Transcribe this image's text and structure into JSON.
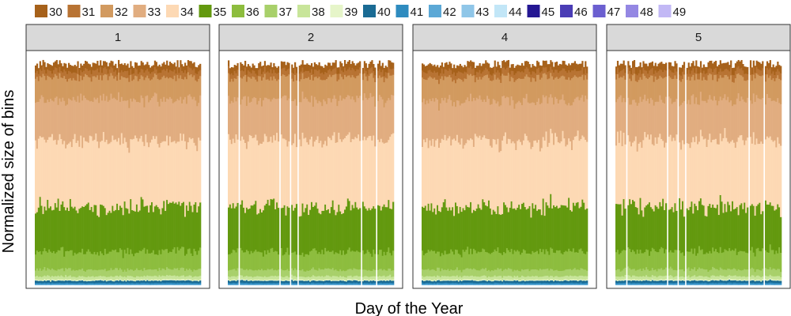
{
  "chart_data": {
    "type": "area",
    "xlabel": "Day of the Year",
    "ylabel": "Normalized size of bins",
    "ylim": [
      0,
      1
    ],
    "grid": false,
    "legend_position": "top",
    "x_axis_ticks": "none",
    "y_axis_ticks": "none",
    "panels": [
      "1",
      "2",
      "4",
      "5"
    ],
    "days_per_panel": 110,
    "missing_days": {
      "1": [],
      "2": [
        7,
        34,
        41,
        46,
        88,
        98
      ],
      "4": [],
      "5": [
        7,
        34,
        41,
        46,
        88,
        98
      ]
    },
    "series": [
      {
        "name": "30",
        "color": "#a6611a",
        "share": 0.03
      },
      {
        "name": "31",
        "color": "#b87333",
        "share": 0.03
      },
      {
        "name": "32",
        "color": "#d29a5f",
        "share": 0.1
      },
      {
        "name": "33",
        "color": "#e1ad80",
        "share": 0.18
      },
      {
        "name": "34",
        "color": "#fdd9b4",
        "share": 0.3
      },
      {
        "name": "35",
        "color": "#63990f",
        "share": 0.2
      },
      {
        "name": "36",
        "color": "#8dbd3e",
        "share": 0.08
      },
      {
        "name": "37",
        "color": "#a8d06a",
        "share": 0.03
      },
      {
        "name": "38",
        "color": "#c8e59a",
        "share": 0.015
      },
      {
        "name": "39",
        "color": "#e6f5c9",
        "share": 0.005
      },
      {
        "name": "40",
        "color": "#1a6b94",
        "share": 0.01
      },
      {
        "name": "41",
        "color": "#2e8bbf",
        "share": 0.006
      },
      {
        "name": "42",
        "color": "#5ba8d6",
        "share": 0.003
      },
      {
        "name": "43",
        "color": "#8fc6e8",
        "share": 0.001
      },
      {
        "name": "44",
        "color": "#c2e6f7",
        "share": 0.001
      },
      {
        "name": "45",
        "color": "#241793",
        "share": 0.0
      },
      {
        "name": "46",
        "color": "#4a3db5",
        "share": 0.0
      },
      {
        "name": "47",
        "color": "#6b5fd0",
        "share": 0.0
      },
      {
        "name": "48",
        "color": "#9487e3",
        "share": 0.0
      },
      {
        "name": "49",
        "color": "#c2b8f5",
        "share": 0.0
      }
    ]
  }
}
